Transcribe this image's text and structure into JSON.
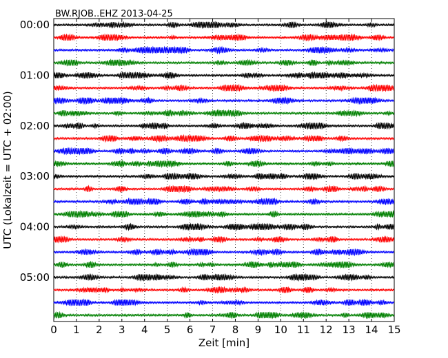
{
  "chart_data": {
    "type": "line",
    "subtype": "dayplot-seismogram",
    "title": "BW.RJOB..EHZ 2013-04-25",
    "xlabel": "Zeit  [min]",
    "ylabel": "UTC (Lokalzeit = UTC + 02:00)",
    "xlim": [
      0,
      15
    ],
    "x_ticks": [
      "0",
      "1",
      "2",
      "3",
      "4",
      "5",
      "6",
      "7",
      "8",
      "9",
      "10",
      "11",
      "12",
      "13",
      "14",
      "15"
    ],
    "y_tick_labels": [
      "00:00",
      "01:00",
      "02:00",
      "03:00",
      "04:00",
      "05:00"
    ],
    "traces_per_hour": 4,
    "trace_count": 24,
    "trace_start_times": [
      "00:00",
      "00:15",
      "00:30",
      "00:45",
      "01:00",
      "01:15",
      "01:30",
      "01:45",
      "02:00",
      "02:15",
      "02:30",
      "02:45",
      "03:00",
      "03:15",
      "03:30",
      "03:45",
      "04:00",
      "04:15",
      "04:30",
      "04:45",
      "05:00",
      "05:15",
      "05:30",
      "05:45"
    ],
    "color_cycle": [
      "#000000",
      "#ff0000",
      "#0000ff",
      "#008000"
    ],
    "grid": "vertical dotted at each minute",
    "legend": "none"
  }
}
